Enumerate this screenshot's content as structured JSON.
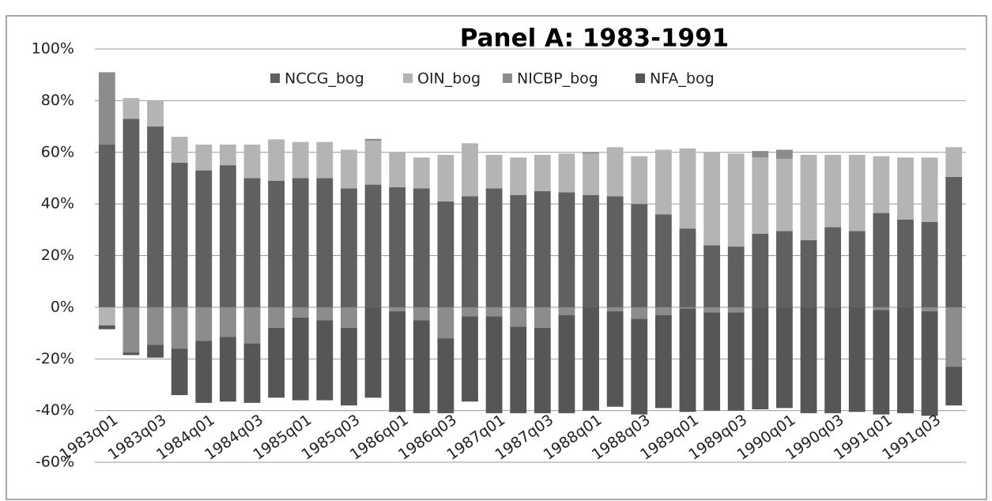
{
  "chart_data": {
    "type": "stacked_bar",
    "title": "Panel A: 1983-1991",
    "categories": [
      "1983q01",
      null,
      "1983q03",
      null,
      "1984q01",
      null,
      "1984q03",
      null,
      "1985q01",
      null,
      "1985q03",
      null,
      "1986q01",
      null,
      "1986q03",
      null,
      "1987q01",
      null,
      "1987q03",
      null,
      "1988q01",
      null,
      "1988q03",
      null,
      "1989q01",
      null,
      "1989q03",
      null,
      "1990q01",
      null,
      "1990q03",
      null,
      "1991q01",
      null,
      "1991q03",
      null
    ],
    "series": [
      {
        "name": "NCCG_bog",
        "color": "#606060",
        "values": [
          63,
          73,
          70,
          56,
          53,
          55,
          50,
          49,
          50,
          50,
          46,
          47.5,
          46.5,
          46,
          41,
          43,
          46,
          43.5,
          45,
          44.5,
          43.5,
          43,
          40,
          36,
          30.5,
          24,
          23.5,
          28.5,
          29.5,
          26,
          31,
          29.5,
          36.5,
          34,
          33,
          50.5
        ]
      },
      {
        "name": "OIN_bog",
        "color": "#b4b4b4",
        "values": [
          -7,
          8,
          10,
          10,
          10,
          8,
          13,
          16,
          14,
          14,
          15,
          17,
          13.5,
          12,
          18,
          20.5,
          13,
          14.5,
          14,
          15,
          16,
          19,
          18.5,
          25,
          31,
          36,
          36,
          29.5,
          28,
          33,
          28,
          29.5,
          22,
          24,
          25,
          11.5
        ]
      },
      {
        "name": "NICBP_bog",
        "color": "#8c8c8c",
        "values": [
          28,
          -17.5,
          -14.5,
          -16,
          -13,
          -11.5,
          -14,
          -8,
          -4,
          -5,
          -8,
          0.7,
          -1.5,
          -5,
          -12,
          -3.5,
          -3.5,
          -7.5,
          -8,
          -3,
          0.5,
          -1.5,
          -4.5,
          -3,
          -0.5,
          -2,
          -2,
          2.5,
          3.5,
          0,
          0,
          0,
          -1,
          0,
          -1.5,
          -23
        ]
      },
      {
        "name": "NFA_bog",
        "color": "#565656",
        "values": [
          -1.5,
          -1,
          -5,
          -18,
          -24,
          -25,
          -23,
          -27,
          -32,
          -31,
          -30,
          -35,
          -39,
          -36,
          -29,
          -33,
          -37.5,
          -33.5,
          -33,
          -38,
          -40,
          -37,
          -37,
          -36,
          -40,
          -38,
          -38,
          -39.5,
          -39,
          -41,
          -41,
          -40.5,
          -40.5,
          -41,
          -40.5,
          -15
        ]
      }
    ],
    "ylim": [
      -60,
      100
    ],
    "yticks": [
      {
        "value": -60,
        "label": "-60%"
      },
      {
        "value": -40,
        "label": "-40%"
      },
      {
        "value": -20,
        "label": "-20%"
      },
      {
        "value": 0,
        "label": "0%"
      },
      {
        "value": 20,
        "label": "20%"
      },
      {
        "value": 40,
        "label": "40%"
      },
      {
        "value": 60,
        "label": "60%"
      },
      {
        "value": 80,
        "label": "80%"
      },
      {
        "value": 100,
        "label": "100%"
      }
    ],
    "grid": true
  }
}
